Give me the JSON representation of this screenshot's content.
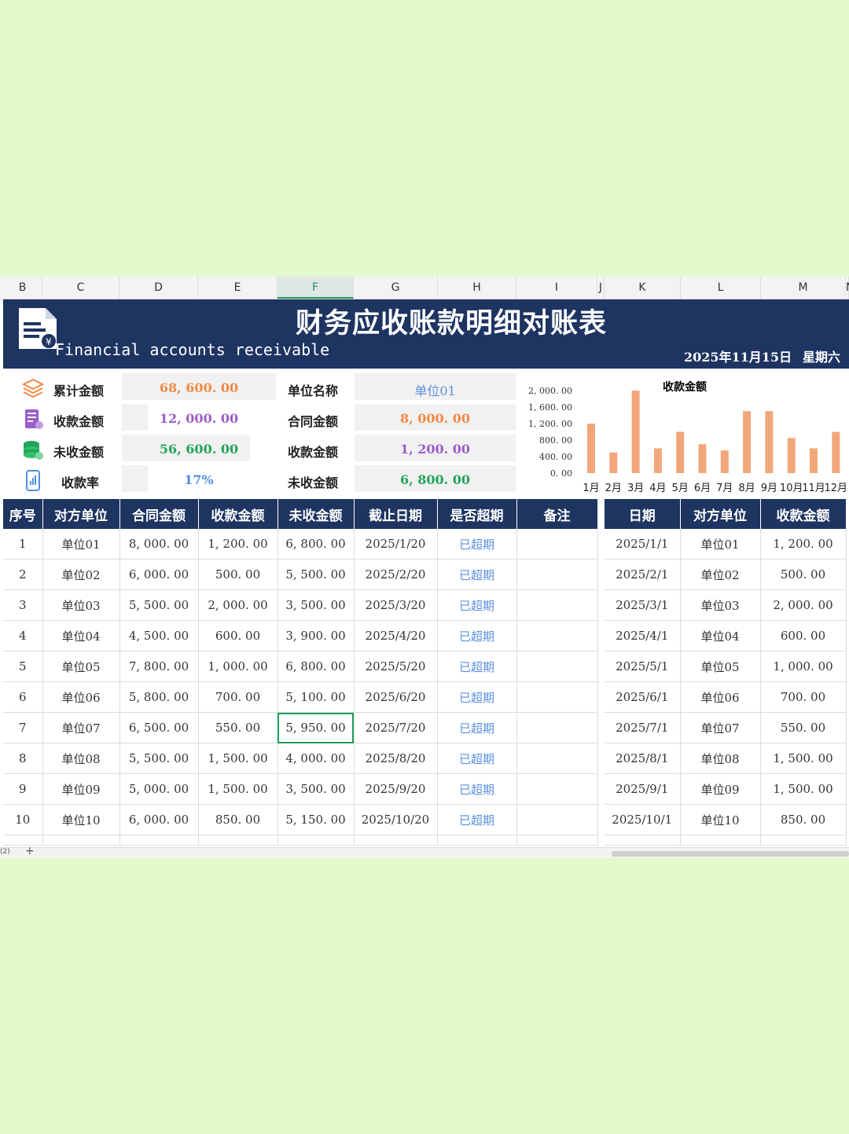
{
  "columns": [
    "B",
    "C",
    "D",
    "E",
    "F",
    "G",
    "H",
    "I",
    "J",
    "K",
    "L",
    "M",
    "N"
  ],
  "banner": {
    "title": "财务应收账款明细对账表",
    "subtitle": "Financial accounts receivable",
    "date": "2025年11月15日",
    "weekday": "星期六"
  },
  "summary": [
    {
      "icon": "stack-layers-icon",
      "label": "累计金额",
      "value": "68, 600. 00",
      "color": "#f08a45",
      "fill": 1.0
    },
    {
      "icon": "receipt-icon",
      "label": "收款金额",
      "value": "12, 000. 00",
      "color": "#9b5fc7",
      "fill": 0.17
    },
    {
      "icon": "coin-stack-icon",
      "label": "未收金额",
      "value": "56, 600. 00",
      "color": "#23a35a",
      "fill": 0.83
    },
    {
      "icon": "phone-chart-icon",
      "label": "收款率",
      "value": "17%",
      "color": "#4f8fe6",
      "fill": 0.17
    }
  ],
  "detail": [
    {
      "label": "单位名称",
      "value": "单位01",
      "color": "#5b8fe0"
    },
    {
      "label": "合同金额",
      "value": "8, 000. 00",
      "color": "#f08a45"
    },
    {
      "label": "收款金额",
      "value": "1, 200. 00",
      "color": "#9b5fc7"
    },
    {
      "label": "未收金额",
      "value": "6, 800. 00",
      "color": "#23a35a"
    }
  ],
  "chart_data": {
    "type": "bar",
    "title": "收款金额",
    "categories": [
      "1月",
      "2月",
      "3月",
      "4月",
      "5月",
      "6月",
      "7月",
      "8月",
      "9月",
      "10月",
      "11月",
      "12月"
    ],
    "values": [
      1200,
      500,
      2000,
      600,
      1000,
      700,
      550,
      1500,
      1500,
      850,
      600,
      1000
    ],
    "yticks": [
      "2, 000. 00",
      "1, 600. 00",
      "1, 200. 00",
      "800. 00",
      "400. 00",
      "0. 00"
    ],
    "ylim": [
      0,
      2000
    ],
    "bar_color": "#f2a77a"
  },
  "main_table": {
    "headers": [
      "序号",
      "对方单位",
      "合同金额",
      "收款金额",
      "未收金额",
      "截止日期",
      "是否超期",
      "备注"
    ],
    "rows": [
      [
        "1",
        "单位01",
        "8, 000. 00",
        "1, 200. 00",
        "6, 800. 00",
        "2025/1/20",
        "已超期",
        ""
      ],
      [
        "2",
        "单位02",
        "6, 000. 00",
        "500. 00",
        "5, 500. 00",
        "2025/2/20",
        "已超期",
        ""
      ],
      [
        "3",
        "单位03",
        "5, 500. 00",
        "2, 000. 00",
        "3, 500. 00",
        "2025/3/20",
        "已超期",
        ""
      ],
      [
        "4",
        "单位04",
        "4, 500. 00",
        "600. 00",
        "3, 900. 00",
        "2025/4/20",
        "已超期",
        ""
      ],
      [
        "5",
        "单位05",
        "7, 800. 00",
        "1, 000. 00",
        "6, 800. 00",
        "2025/5/20",
        "已超期",
        ""
      ],
      [
        "6",
        "单位06",
        "5, 800. 00",
        "700. 00",
        "5, 100. 00",
        "2025/6/20",
        "已超期",
        ""
      ],
      [
        "7",
        "单位07",
        "6, 500. 00",
        "550. 00",
        "5, 950. 00",
        "2025/7/20",
        "已超期",
        ""
      ],
      [
        "8",
        "单位08",
        "5, 500. 00",
        "1, 500. 00",
        "4, 000. 00",
        "2025/8/20",
        "已超期",
        ""
      ],
      [
        "9",
        "单位09",
        "5, 000. 00",
        "1, 500. 00",
        "3, 500. 00",
        "2025/9/20",
        "已超期",
        ""
      ],
      [
        "10",
        "单位10",
        "6, 000. 00",
        "850. 00",
        "5, 150. 00",
        "2025/10/20",
        "已超期",
        ""
      ]
    ]
  },
  "side_table": {
    "headers": [
      "日期",
      "对方单位",
      "收款金额"
    ],
    "rows": [
      [
        "2025/1/1",
        "单位01",
        "1, 200. 00"
      ],
      [
        "2025/2/1",
        "单位02",
        "500. 00"
      ],
      [
        "2025/3/1",
        "单位03",
        "2, 000. 00"
      ],
      [
        "2025/4/1",
        "单位04",
        "600. 00"
      ],
      [
        "2025/5/1",
        "单位05",
        "1, 000. 00"
      ],
      [
        "2025/6/1",
        "单位06",
        "700. 00"
      ],
      [
        "2025/7/1",
        "单位07",
        "550. 00"
      ],
      [
        "2025/8/1",
        "单位08",
        "1, 500. 00"
      ],
      [
        "2025/9/1",
        "单位09",
        "1, 500. 00"
      ],
      [
        "2025/10/1",
        "单位10",
        "850. 00"
      ]
    ]
  },
  "footer": {
    "sheet_count": "(2)",
    "add_label": "+"
  }
}
